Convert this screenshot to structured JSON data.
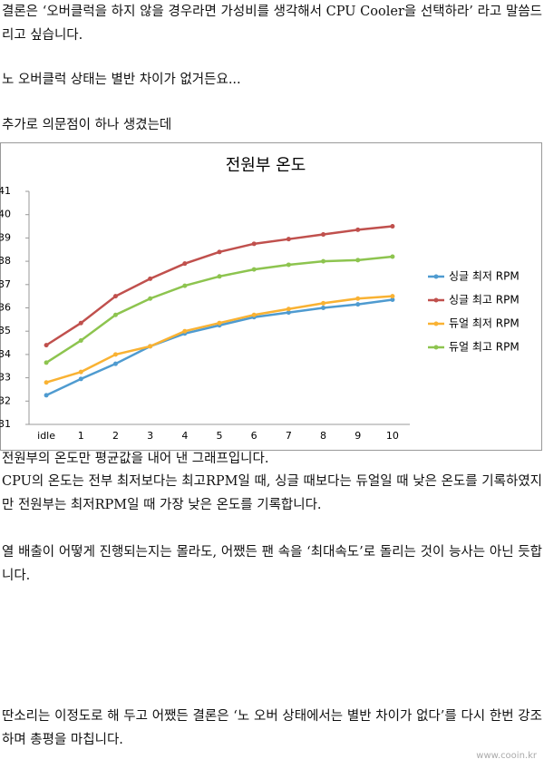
{
  "paragraphs": [
    "결론은 ‘오버클럭을 하지 않을 경우라면 가성비를 생각해서 CPU Cooler을 선택하라’ 라고 말씀드리고 싶습니다.",
    "노 오버클럭 상태는 별반 차이가 없거든요...",
    "추가로 의문점이 하나 생겼는데",
    "전원부의 온도만 평균값을 내어 낸 그래프입니다.",
    "CPU의 온도는 전부 최저보다는 최고RPM일 때, 싱글 때보다는 듀얼일 때 낮은 온도를 기록하였지만 전원부는 최저RPM일 때 가장 낮은 온도를 기록합니다.",
    "열 배출이 어떻게 진행되는지는 몰라도, 어쨌든 팬 속을 ‘최대속도’로 돌리는 것이 능사는 아닌 듯합니다.",
    "딴소리는 이정도로 해 두고 어쨌든 결론은 ‘노 오버 상태에서는 별반 차이가 없다’를 다시 한번 강조하며 총평을 마칩니다."
  ],
  "watermark": "www.cooin.kr",
  "chart_data": {
    "type": "line",
    "title": "전원부 온도",
    "categories": [
      "idle",
      "1",
      "2",
      "3",
      "4",
      "5",
      "6",
      "7",
      "8",
      "9",
      "10"
    ],
    "ylim": [
      31,
      41
    ],
    "yticks": [
      31,
      32,
      33,
      34,
      35,
      36,
      37,
      38,
      39,
      40,
      41
    ],
    "legend": "right",
    "series": [
      {
        "name": "싱글 최저 RPM",
        "color": "#4f9bd0",
        "values": [
          32.25,
          32.95,
          33.6,
          34.35,
          34.9,
          35.25,
          35.6,
          35.8,
          36.0,
          36.15,
          36.35
        ]
      },
      {
        "name": "싱글 최고 RPM",
        "color": "#c0504d",
        "values": [
          34.4,
          35.35,
          36.5,
          37.25,
          37.9,
          38.4,
          38.75,
          38.95,
          39.15,
          39.35,
          39.5
        ]
      },
      {
        "name": "듀얼 최저 RPM",
        "color": "#f9b233",
        "values": [
          32.8,
          33.25,
          34.0,
          34.35,
          35.0,
          35.35,
          35.7,
          35.95,
          36.2,
          36.4,
          36.5
        ]
      },
      {
        "name": "듀얼 최고 RPM",
        "color": "#8dc44f",
        "values": [
          33.65,
          34.6,
          35.7,
          36.4,
          36.95,
          37.35,
          37.65,
          37.85,
          38.0,
          38.05,
          38.2
        ]
      }
    ]
  }
}
